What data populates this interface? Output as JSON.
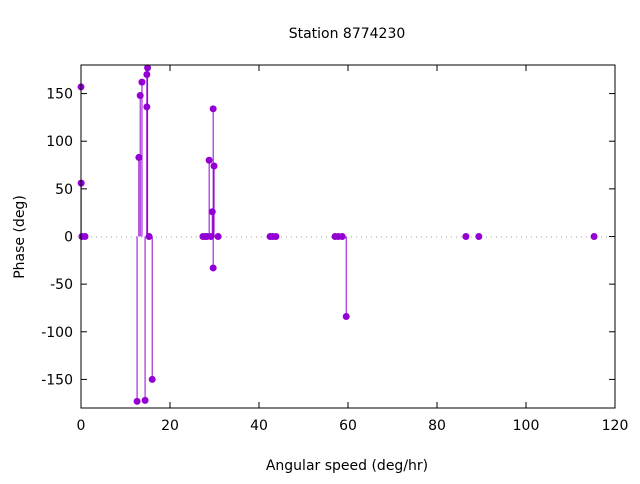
{
  "chart_data": {
    "type": "scatter",
    "style": "impulses with points",
    "title": "Station 8774230",
    "xlabel": "Angular speed (deg/hr)",
    "ylabel": "Phase (deg)",
    "xlim": [
      0,
      120
    ],
    "ylim": [
      -180,
      180
    ],
    "xticks": [
      "0",
      "20",
      "40",
      "60",
      "80",
      "100",
      "120"
    ],
    "yticks": [
      "-150",
      "-100",
      "-50",
      "0",
      "50",
      "100",
      "150"
    ],
    "zero_line": "dotted gray",
    "grid": false,
    "color": "#9400d3",
    "points": [
      {
        "x": 0.0,
        "y": 157
      },
      {
        "x": 0.04,
        "y": 56
      },
      {
        "x": 0.2,
        "y": 0
      },
      {
        "x": 0.9,
        "y": 0
      },
      {
        "x": 12.6,
        "y": -173
      },
      {
        "x": 13.0,
        "y": 83
      },
      {
        "x": 13.3,
        "y": 148
      },
      {
        "x": 13.7,
        "y": 162
      },
      {
        "x": 14.4,
        "y": -172
      },
      {
        "x": 14.8,
        "y": 170
      },
      {
        "x": 14.96,
        "y": 177
      },
      {
        "x": 14.8,
        "y": 136
      },
      {
        "x": 15.3,
        "y": 0
      },
      {
        "x": 16.0,
        "y": -150
      },
      {
        "x": 27.4,
        "y": 0
      },
      {
        "x": 27.9,
        "y": 0
      },
      {
        "x": 28.3,
        "y": 0
      },
      {
        "x": 28.8,
        "y": 80
      },
      {
        "x": 29.2,
        "y": 0
      },
      {
        "x": 29.5,
        "y": 26
      },
      {
        "x": 29.7,
        "y": 134
      },
      {
        "x": 29.7,
        "y": -33
      },
      {
        "x": 29.9,
        "y": 74
      },
      {
        "x": 30.8,
        "y": 0
      },
      {
        "x": 42.5,
        "y": 0
      },
      {
        "x": 43.1,
        "y": 0
      },
      {
        "x": 43.8,
        "y": 0
      },
      {
        "x": 57.1,
        "y": 0
      },
      {
        "x": 57.8,
        "y": 0
      },
      {
        "x": 58.7,
        "y": 0
      },
      {
        "x": 59.6,
        "y": -84
      },
      {
        "x": 86.5,
        "y": 0
      },
      {
        "x": 89.4,
        "y": 0
      },
      {
        "x": 115.3,
        "y": 0
      }
    ]
  }
}
